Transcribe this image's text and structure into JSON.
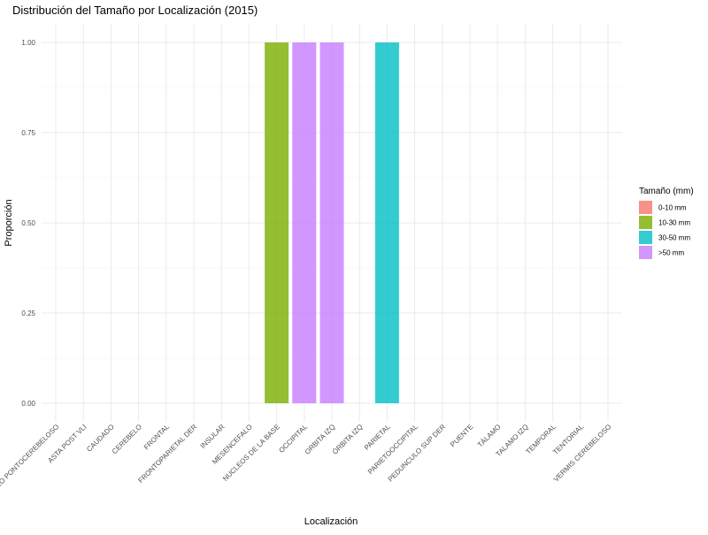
{
  "chart_data": {
    "type": "bar",
    "title": "Distribución del Tamaño por Localización (2015)",
    "xlabel": "Localización",
    "ylabel": "Proporción",
    "ylim": [
      0,
      1
    ],
    "y_ticks": [
      "0.00",
      "0.25",
      "0.50",
      "0.75",
      "1.00"
    ],
    "y_tick_values": [
      0,
      0.25,
      0.5,
      0.75,
      1
    ],
    "grid": true,
    "legend_position": "right",
    "categories": [
      "ÁNGULO PONTOCEREBELOSO",
      "ASTA POST VLI",
      "CAUDADO",
      "CEREBELO",
      "FRONTAL",
      "FRONTOPARIETAL DER",
      "INSULAR",
      "MESENCEFALO",
      "NUCLEOS DE LA BASE",
      "OCCIPITAL",
      "ORBITA IZQ",
      "ÓRBITA IZQ",
      "PARIETAL",
      "PARIETOOCCIPITAL",
      "PEDUNCULO SUP DER",
      "PUENTE",
      "TÁLAMO",
      "TALAMO IZQ",
      "TEMPORAL",
      "TENTORIAL",
      "VERMIS CEREBELOSO"
    ],
    "legend_title": "Tamaño (mm)",
    "series": [
      {
        "name": "0-10 mm",
        "color": "#F8766D",
        "values": [
          0,
          0,
          0,
          0,
          0,
          0,
          0,
          0,
          0,
          0,
          0,
          0,
          0,
          0,
          0,
          0,
          0,
          0,
          0,
          0,
          0
        ]
      },
      {
        "name": "10-30 mm",
        "color": "#7CAE00",
        "values": [
          0,
          0,
          0,
          0,
          0,
          0,
          0,
          0,
          1,
          0,
          0,
          0,
          0,
          0,
          0,
          0,
          0,
          0,
          0,
          0,
          0
        ]
      },
      {
        "name": "30-50 mm",
        "color": "#00BFC4",
        "values": [
          0,
          0,
          0,
          0,
          0,
          0,
          0,
          0,
          0,
          0,
          0,
          0,
          1,
          0,
          0,
          0,
          0,
          0,
          0,
          0,
          0
        ]
      },
      {
        "name": ">50 mm",
        "color": "#C77CFF",
        "values": [
          0,
          0,
          0,
          0,
          0,
          0,
          0,
          0,
          0,
          1,
          1,
          0,
          0,
          0,
          0,
          0,
          0,
          0,
          0,
          0,
          0
        ]
      }
    ]
  }
}
